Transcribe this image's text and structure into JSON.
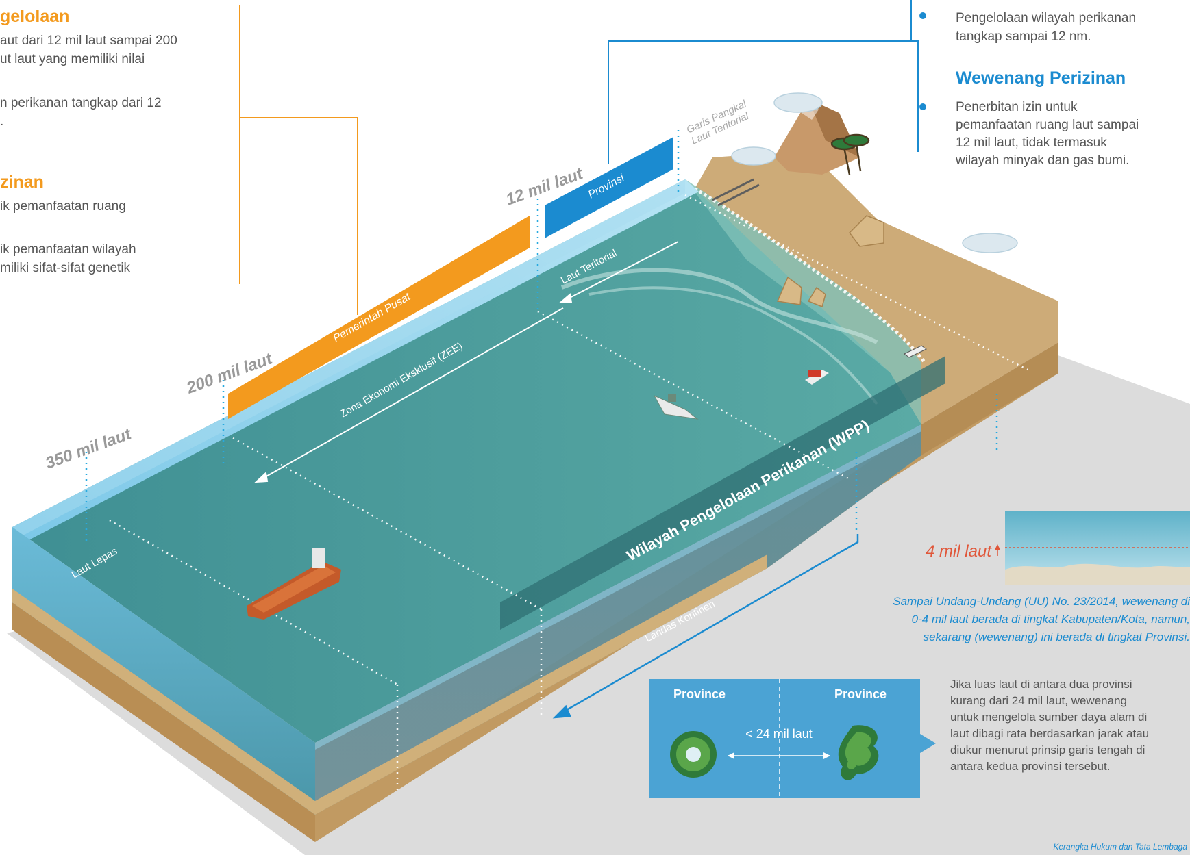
{
  "left_panel": {
    "heading_management": "gelolaan",
    "management_lines": [
      "aut dari 12 mil laut sampai 200",
      "ut laut yang memiliki nilai",
      "n perikanan tangkap dari 12",
      "."
    ],
    "heading_licensing": "zinan",
    "licensing_lines": [
      "ik pemanfaatan ruang",
      "ik pemanfaatan wilayah",
      "miliki sifat-sifat genetik"
    ]
  },
  "right_panel": {
    "bullet_management": [
      "Pengelolaan wilayah perikanan",
      "tangkap sampai 12 nm."
    ],
    "heading_licensing": "Wewenang Perizinan",
    "bullet_licensing": [
      "Penerbitan izin untuk",
      "pemanfaatan ruang laut sampai",
      "12 mil laut, tidak termasuk",
      "wilayah minyak dan gas bumi."
    ]
  },
  "diagram": {
    "mil_350": "350 mil laut",
    "mil_200": "200 mil laut",
    "mil_12": "12 mil laut",
    "bar_central": "Pemerintah Pusat",
    "bar_province": "Provinsi",
    "baseline_line1": "Garis Pangkal",
    "baseline_line2": "Laut Teritorial",
    "territorial_sea": "Laut Teritorial",
    "zee": "Zona Ekonomi Eksklusif (ZEE)",
    "high_seas": "Laut Lepas",
    "continental_shelf": "Landas Kontinen",
    "wpp": "Wilayah Pengelolaan Perikanan (WPP)"
  },
  "inset_depth": {
    "label": "4 mil laut",
    "note_lines": [
      "Sampai Undang-Undang (UU) No. 23/2014, wewenang di",
      "0-4 mil laut berada di tingkat Kabupaten/Kota, namun,",
      "sekarang (wewenang) ini berada di tingkat Provinsi."
    ]
  },
  "province_box": {
    "left_label": "Province",
    "right_label": "Province",
    "distance": "< 24 mil laut",
    "paragraph": [
      "Jika luas laut di antara dua provinsi",
      "kurang dari 24 mil laut, wewenang",
      "untuk mengelola sumber daya alam di",
      "laut dibagi rata berdasarkan jarak atau",
      "diukur menurut prinsip garis tengah di",
      "antara kedua provinsi tersebut."
    ]
  },
  "footer": "Kerangka Hukum dan Tata Lembaga",
  "colors": {
    "orange": "#f39a1e",
    "blue": "#1b8bd0",
    "sea": "#4a9c9c",
    "sand": "#c8a574",
    "sky_blue": "#6dc6ea"
  }
}
